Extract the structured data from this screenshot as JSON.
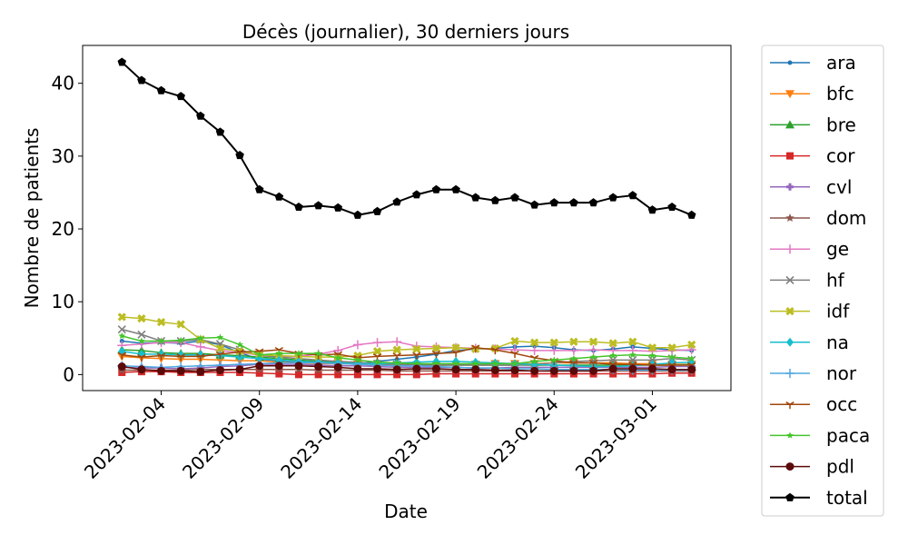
{
  "chart_data": {
    "type": "line",
    "title": "Décès (journalier), 30 derniers jours",
    "xlabel": "Date",
    "ylabel": "Nombre de patients",
    "xlim": [
      "2023-01-31",
      "2023-03-05"
    ],
    "ylim": [
      -2.2,
      45.2
    ],
    "y_ticks": [
      0,
      10,
      20,
      30,
      40
    ],
    "x_ticks": [
      "2023-02-04",
      "2023-02-09",
      "2023-02-14",
      "2023-02-19",
      "2023-02-24",
      "2023-03-01"
    ],
    "grid": false,
    "legend_position": "outside-right",
    "x": [
      "2023-02-02",
      "2023-02-03",
      "2023-02-04",
      "2023-02-05",
      "2023-02-06",
      "2023-02-07",
      "2023-02-08",
      "2023-02-09",
      "2023-02-10",
      "2023-02-11",
      "2023-02-12",
      "2023-02-13",
      "2023-02-14",
      "2023-02-15",
      "2023-02-16",
      "2023-02-17",
      "2023-02-18",
      "2023-02-19",
      "2023-02-20",
      "2023-02-21",
      "2023-02-22",
      "2023-02-23",
      "2023-02-24",
      "2023-02-25",
      "2023-02-26",
      "2023-02-27",
      "2023-02-28",
      "2023-03-01",
      "2023-03-02",
      "2023-03-03"
    ],
    "series": [
      {
        "name": "ara",
        "color": "#1f77b4",
        "marker": "point",
        "values": [
          4.6,
          4.3,
          4.4,
          4.3,
          4.6,
          4.1,
          3.0,
          2.1,
          1.9,
          1.7,
          1.6,
          1.6,
          1.5,
          1.8,
          2.1,
          2.4,
          2.8,
          3.3,
          3.5,
          3.6,
          3.8,
          3.9,
          3.7,
          3.4,
          3.3,
          3.5,
          3.8,
          3.6,
          3.4,
          3.3
        ]
      },
      {
        "name": "bfc",
        "color": "#ff7f0e",
        "marker": "triangle_down",
        "values": [
          2.5,
          2.3,
          2.2,
          2.1,
          2.1,
          2.0,
          1.9,
          1.9,
          1.7,
          1.6,
          1.5,
          1.5,
          1.4,
          1.3,
          1.3,
          1.3,
          1.3,
          1.4,
          1.4,
          1.5,
          1.5,
          1.5,
          1.6,
          1.6,
          1.6,
          1.6,
          1.5,
          1.5,
          1.4,
          1.4
        ]
      },
      {
        "name": "bre",
        "color": "#2ca02c",
        "marker": "triangle_up",
        "values": [
          3.4,
          3.3,
          3.0,
          2.9,
          2.9,
          2.7,
          2.6,
          2.4,
          2.2,
          2.0,
          1.8,
          1.7,
          1.6,
          1.5,
          1.4,
          1.4,
          1.3,
          1.3,
          1.3,
          1.3,
          1.3,
          1.3,
          1.3,
          1.3,
          1.3,
          1.3,
          1.3,
          1.3,
          1.3,
          1.4
        ]
      },
      {
        "name": "cor",
        "color": "#d62728",
        "marker": "square",
        "values": [
          0.3,
          0.4,
          0.4,
          0.3,
          0.3,
          0.3,
          0.3,
          0.2,
          0.1,
          0.0,
          0.0,
          0.0,
          0.0,
          0.0,
          0.0,
          0.0,
          0.1,
          0.1,
          0.1,
          0.1,
          0.1,
          0.1,
          0.1,
          0.1,
          0.1,
          0.1,
          0.1,
          0.1,
          0.2,
          0.2
        ]
      },
      {
        "name": "cvl",
        "color": "#9467bd",
        "marker": "plus_filled",
        "values": [
          1.0,
          0.9,
          0.9,
          0.8,
          0.9,
          1.1,
          1.2,
          1.4,
          1.4,
          1.4,
          1.3,
          1.2,
          1.2,
          1.1,
          1.0,
          1.0,
          1.0,
          1.0,
          0.9,
          0.9,
          1.0,
          1.0,
          1.0,
          1.0,
          1.0,
          1.0,
          1.0,
          1.0,
          1.1,
          1.1
        ]
      },
      {
        "name": "dom",
        "color": "#8c564b",
        "marker": "star",
        "values": [
          0.6,
          0.6,
          0.6,
          0.6,
          0.7,
          0.7,
          0.7,
          0.7,
          0.7,
          0.7,
          0.6,
          0.6,
          0.6,
          0.6,
          0.5,
          0.5,
          0.5,
          0.5,
          0.5,
          0.5,
          0.5,
          0.5,
          0.5,
          0.5,
          0.5,
          0.5,
          0.5,
          0.5,
          0.5,
          0.5
        ]
      },
      {
        "name": "ge",
        "color": "#e377c2",
        "marker": "plus",
        "values": [
          4.0,
          4.2,
          4.4,
          4.4,
          3.8,
          3.3,
          3.0,
          2.7,
          2.5,
          2.5,
          2.8,
          3.3,
          4.1,
          4.4,
          4.5,
          3.9,
          3.8,
          3.7,
          3.6,
          3.5,
          3.4,
          3.3,
          3.3,
          3.3,
          3.4,
          3.3,
          3.3,
          3.2,
          3.3,
          3.4
        ]
      },
      {
        "name": "hf",
        "color": "#7f7f7f",
        "marker": "x",
        "values": [
          6.2,
          5.5,
          4.6,
          4.6,
          4.8,
          4.2,
          3.4,
          2.6,
          2.4,
          2.2,
          2.0,
          1.8,
          1.7,
          1.5,
          1.4,
          1.3,
          1.3,
          1.3,
          1.3,
          1.3,
          1.3,
          1.4,
          1.6,
          1.8,
          1.9,
          2.0,
          2.0,
          2.0,
          2.2,
          2.0
        ]
      },
      {
        "name": "idf",
        "color": "#bcbd22",
        "marker": "cross",
        "values": [
          7.9,
          7.7,
          7.2,
          6.9,
          4.8,
          3.6,
          3.2,
          2.7,
          2.6,
          2.5,
          2.4,
          2.4,
          2.6,
          3.2,
          3.4,
          3.5,
          3.6,
          3.7,
          3.5,
          3.6,
          4.6,
          4.4,
          4.4,
          4.5,
          4.5,
          4.3,
          4.5,
          3.7,
          3.7,
          4.1
        ]
      },
      {
        "name": "na",
        "color": "#17becf",
        "marker": "diamond",
        "values": [
          3.2,
          2.8,
          2.8,
          2.7,
          2.7,
          2.6,
          2.4,
          2.2,
          2.0,
          1.8,
          1.7,
          1.6,
          1.5,
          1.5,
          1.6,
          1.7,
          1.8,
          1.8,
          1.7,
          1.6,
          1.5,
          1.4,
          1.3,
          1.2,
          1.1,
          1.1,
          1.2,
          1.4,
          1.6,
          1.7
        ]
      },
      {
        "name": "nor",
        "color": "#4fa8de",
        "marker": "plus",
        "values": [
          1.2,
          1.1,
          1.0,
          1.1,
          1.2,
          1.3,
          1.4,
          1.5,
          1.6,
          1.6,
          1.6,
          1.5,
          1.4,
          1.3,
          1.2,
          1.2,
          1.1,
          1.0,
          0.9,
          0.9,
          0.8,
          0.8,
          0.7,
          0.7,
          0.7,
          0.7,
          0.6,
          0.6,
          0.6,
          0.6
        ]
      },
      {
        "name": "occ",
        "color": "#a0460c",
        "marker": "tri_down",
        "values": [
          2.7,
          2.4,
          2.6,
          2.5,
          2.5,
          2.8,
          3.1,
          3.2,
          3.4,
          2.9,
          2.7,
          2.8,
          2.3,
          2.5,
          2.6,
          2.7,
          2.9,
          3.0,
          3.7,
          3.4,
          2.9,
          2.3,
          1.9,
          1.6,
          1.6,
          1.4,
          1.4,
          1.3,
          1.3,
          1.3
        ]
      },
      {
        "name": "paca",
        "color": "#44c52b",
        "marker": "star_small",
        "values": [
          5.3,
          4.6,
          4.6,
          4.7,
          5.0,
          5.1,
          4.1,
          2.7,
          2.9,
          2.9,
          2.9,
          2.3,
          2.0,
          1.7,
          1.6,
          1.5,
          1.5,
          1.5,
          1.5,
          1.5,
          1.5,
          1.8,
          2.0,
          2.2,
          2.4,
          2.6,
          2.7,
          2.6,
          2.4,
          2.2
        ]
      },
      {
        "name": "pdl",
        "color": "#5b0a0a",
        "marker": "circle",
        "values": [
          1.1,
          0.7,
          0.5,
          0.5,
          0.4,
          0.6,
          0.7,
          1.2,
          1.2,
          1.2,
          1.1,
          1.0,
          0.8,
          0.8,
          0.7,
          0.8,
          0.8,
          0.7,
          0.7,
          0.6,
          0.6,
          0.5,
          0.5,
          0.5,
          0.5,
          0.8,
          0.8,
          0.8,
          0.7,
          0.7
        ]
      },
      {
        "name": "total",
        "color": "#000000",
        "marker": "pentagon",
        "values": [
          42.9,
          40.4,
          39.0,
          38.2,
          35.5,
          33.3,
          30.1,
          25.4,
          24.4,
          23.0,
          23.2,
          22.9,
          21.9,
          22.4,
          23.7,
          24.7,
          25.4,
          25.4,
          24.3,
          23.9,
          24.3,
          23.3,
          23.6,
          23.6,
          23.6,
          24.3,
          24.6,
          22.6,
          23.0,
          21.9
        ]
      }
    ]
  }
}
